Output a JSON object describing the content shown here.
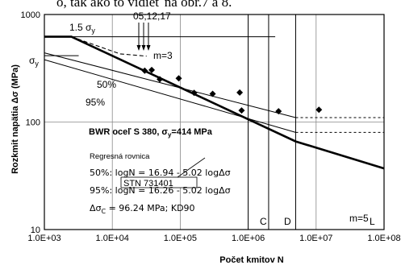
{
  "header_fragment": "ó, tak ako to vidieť na obr.7 a 8.",
  "chart_data": {
    "type": "scatter",
    "xscale": "log",
    "yscale": "log",
    "xlim": [
      1000,
      100000000
    ],
    "ylim": [
      10,
      1000
    ],
    "xlabel": "Počet kmitov  N",
    "ylabel": "Rozkmit napätia Δσ (MPa)",
    "grid": true,
    "x_ticks": [
      "1.0E+03",
      "1.0E+04",
      "1.0E+05",
      "1.0E+06",
      "1.0E+07",
      "1.0E+08"
    ],
    "y_ticks": [
      "1000",
      "100",
      "10"
    ],
    "points": [
      {
        "x": 30000,
        "y": 300
      },
      {
        "x": 38000,
        "y": 305
      },
      {
        "x": 50000,
        "y": 250
      },
      {
        "x": 95000,
        "y": 255
      },
      {
        "x": 160000,
        "y": 187
      },
      {
        "x": 300000,
        "y": 183
      },
      {
        "x": 750000,
        "y": 188
      },
      {
        "x": 800000,
        "y": 128
      },
      {
        "x": 2800000,
        "y": 126
      },
      {
        "x": 11000000,
        "y": 130
      }
    ],
    "lines": [
      {
        "name": "50%",
        "style": "solid",
        "points": [
          [
            1000,
            440
          ],
          [
            5000000,
            110
          ]
        ]
      },
      {
        "name": "95%",
        "style": "solid",
        "points": [
          [
            1000,
            380
          ],
          [
            5000000,
            80
          ]
        ]
      },
      {
        "name": "1.5 σy",
        "style": "solid",
        "points": [
          [
            1000,
            621
          ],
          [
            2500000,
            621
          ]
        ]
      },
      {
        "name": "design_upper",
        "style": "dashed",
        "points": [
          [
            2500,
            621
          ],
          [
            13000,
            430
          ],
          [
            32000,
            410
          ]
        ]
      },
      {
        "name": "kd90_design",
        "style": "bold",
        "points": [
          [
            1000,
            621
          ],
          [
            2500,
            621
          ],
          [
            5000000,
            66
          ],
          [
            100000000,
            37
          ]
        ]
      },
      {
        "name": "50%_ext",
        "style": "dotted",
        "points": [
          [
            5000000,
            110
          ],
          [
            100000000,
            110
          ]
        ]
      },
      {
        "name": "95%_ext",
        "style": "dotted",
        "points": [
          [
            5000000,
            80
          ],
          [
            100000000,
            80
          ]
        ]
      }
    ],
    "vertical_lines": [
      {
        "label": "C",
        "x": 1000000
      },
      {
        "label": "D",
        "x": 2000000
      },
      {
        "label": "L",
        "x": 5000000
      }
    ],
    "annotations": {
      "sigma_15": "1.5 σ",
      "sigma_15_sub": "y",
      "sigma_y": "σ",
      "sigma_y_sub": "y",
      "specimens": "05;12;17",
      "slope_m3": "m=3",
      "slope_m5": "m=5",
      "p50": "50%",
      "p95": "95%",
      "stn": "STN 731401",
      "material": "BWR  oceľ S 380, σ",
      "material_sub": "y",
      "material_tail": "=414 MPa",
      "regression_title": "Regresná rovnica",
      "eq_50": "50%: logN = 16.94 - 5.02 logΔσ",
      "eq_95": "95%: logN = 16.26 - 5.02 logΔσ",
      "eq_c": "Δσ",
      "eq_c_sub": "C",
      "eq_c_tail": " = 96.24 MPa; KD90",
      "vline_c": "C",
      "vline_d": "D",
      "vline_l": "L"
    }
  }
}
